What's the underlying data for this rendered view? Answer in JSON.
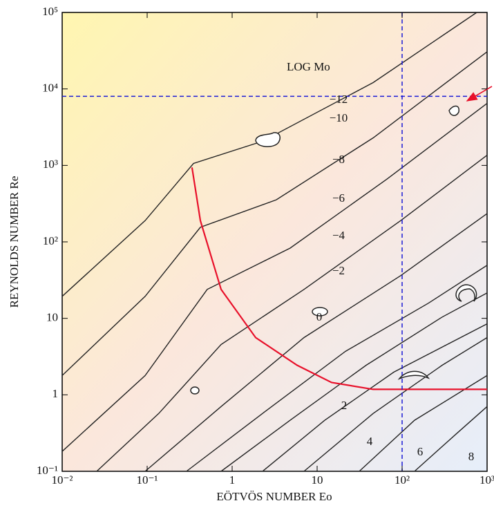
{
  "chart_data": {
    "type": "line",
    "xlabel": "EÖTVÖS NUMBER Eo",
    "ylabel": "REYNOLDS NUMBER Re",
    "annotation": "LOG Mo",
    "xscale": "log",
    "yscale": "log",
    "xlim": [
      0.01,
      1000
    ],
    "ylim": [
      0.1,
      100000
    ],
    "xticks": [
      {
        "value": 0.01,
        "label": "10⁻²"
      },
      {
        "value": 0.1,
        "label": "10⁻¹"
      },
      1,
      10,
      {
        "value": 100,
        "label": "10²"
      },
      {
        "value": 1000,
        "label": "10³"
      }
    ],
    "yticks": [
      {
        "value": 0.1,
        "label": "10⁻¹"
      },
      1,
      10,
      {
        "value": 100,
        "label": "10²"
      },
      {
        "value": 1000,
        "label": "10³"
      },
      {
        "value": 10000,
        "label": "10⁴"
      },
      {
        "value": 100000,
        "label": "10⁵"
      }
    ],
    "hlines": [
      8000
    ],
    "vlines": [
      100
    ],
    "reference_color": "#1a1ad6",
    "series": [
      {
        "name": "−12",
        "color": "#222222",
        "x": [
          0.01,
          0.0947,
          0.351,
          2.28,
          45.6,
          755
        ],
        "y": [
          19.4,
          190,
          1060,
          2070,
          12100,
          100000
        ]
      },
      {
        "name": "−10",
        "color": "#222222",
        "x": [
          0.01,
          0.0947,
          0.423,
          3.31,
          45.6,
          1000
        ],
        "y": [
          1.79,
          19.4,
          155,
          355,
          2290,
          30600
        ]
      },
      {
        "name": "−8",
        "color": "#222222",
        "x": [
          0.01,
          0.0947,
          0.509,
          4.82,
          66.2,
          1000
        ],
        "y": [
          0.182,
          1.79,
          23.9,
          83.0,
          661,
          6470
        ]
      },
      {
        "name": "−6",
        "color": "#222222",
        "x": [
          0.0255,
          0.137,
          0.741,
          7.01,
          96.4,
          1000
        ],
        "y": [
          0.1,
          0.571,
          4.55,
          23.9,
          190,
          1360
        ]
      },
      {
        "name": "−4",
        "color": "#222222",
        "x": [
          0.0947,
          0.741,
          7.01,
          96.4,
          1000
        ],
        "y": [
          0.1,
          0.703,
          5.6,
          36.2,
          234
        ]
      },
      {
        "name": "−2",
        "color": "#222222",
        "x": [
          0.29,
          2.28,
          21.5,
          204,
          1000
        ],
        "y": [
          0.1,
          0.571,
          3.7,
          15.8,
          49.4
        ]
      },
      {
        "name": "0",
        "color": "#222222",
        "x": [
          0.741,
          4.82,
          37.8,
          296,
          1000
        ],
        "y": [
          0.1,
          0.465,
          2.44,
          10.4,
          21.5
        ]
      },
      {
        "name": "2",
        "color": "#222222",
        "x": [
          2.28,
          12.3,
          79.8,
          1000
        ],
        "y": [
          0.1,
          0.465,
          1.98,
          8.47
        ]
      },
      {
        "name": "4",
        "color": "#222222",
        "x": [
          7.01,
          45.6,
          296,
          1000
        ],
        "y": [
          0.1,
          0.571,
          2.44,
          5.6
        ]
      },
      {
        "name": "6",
        "color": "#222222",
        "x": [
          31.3,
          140,
          1000
        ],
        "y": [
          0.1,
          0.465,
          1.79
        ]
      },
      {
        "name": "8",
        "color": "#222222",
        "x": [
          140,
          431,
          1000
        ],
        "y": [
          0.1,
          0.306,
          0.703
        ]
      },
      {
        "color": "#e8102a",
        "x": [
          0.337,
          0.423,
          0.741,
          1.89,
          5.81,
          14.8,
          45.6,
          1000
        ],
        "y": [
          940,
          190,
          23.9,
          5.6,
          2.44,
          1.45,
          1.18,
          1.18
        ]
      }
    ]
  }
}
